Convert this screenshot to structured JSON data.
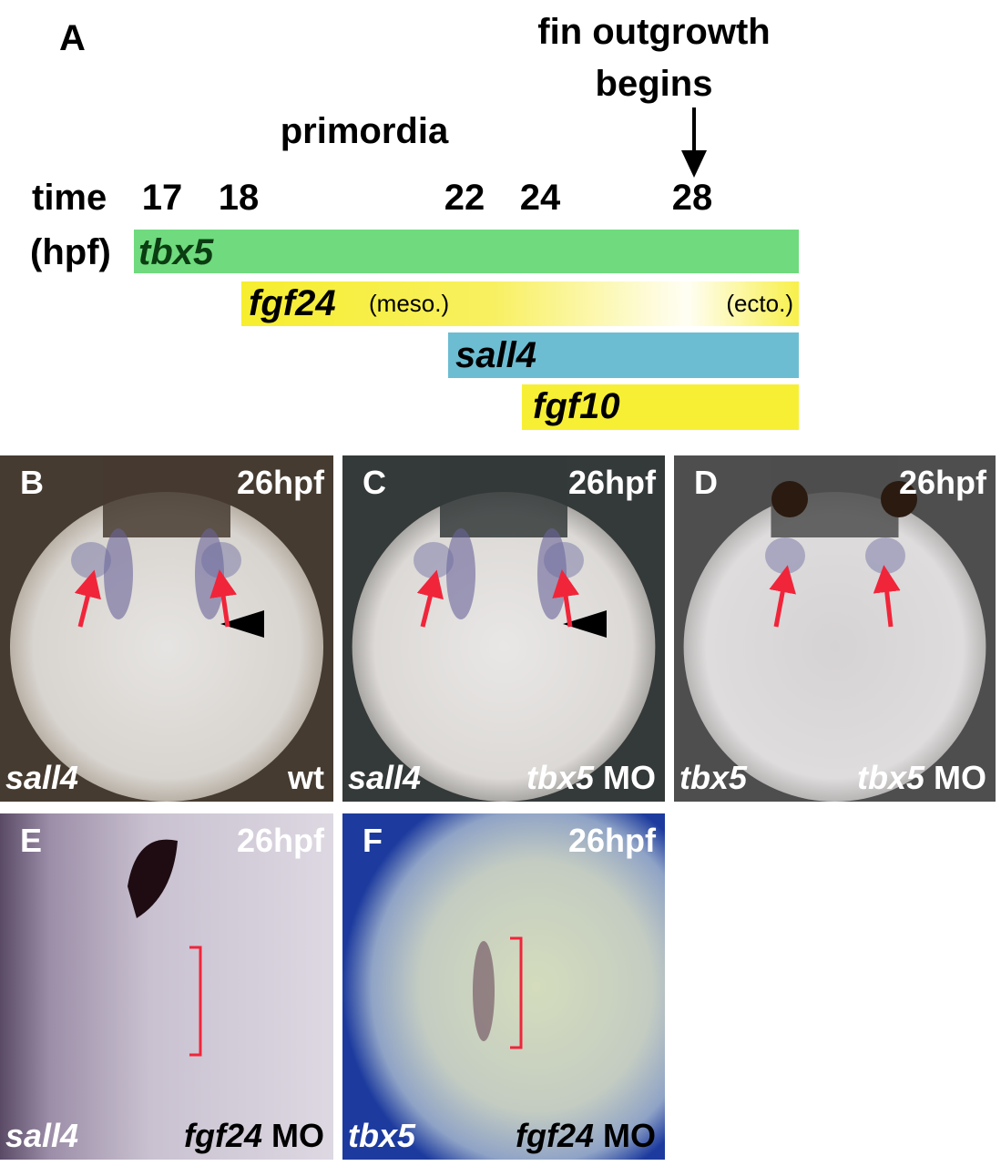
{
  "panel_a": {
    "label": "A",
    "annotation_lines": [
      "fin outgrowth",
      "begins"
    ],
    "stage_label": "primordia",
    "axis_label": [
      "time",
      "(hpf)"
    ],
    "times": [
      17,
      18,
      22,
      24,
      28
    ],
    "bars": [
      {
        "gene": "tbx5"
      },
      {
        "gene": "fgf24",
        "left_note": "(meso.)",
        "right_note": "(ecto.)"
      },
      {
        "gene": "sall4"
      },
      {
        "gene": "fgf10"
      }
    ]
  },
  "panels": [
    {
      "label": "B",
      "stage": "26hpf",
      "probe": "sall4",
      "condition": "wt"
    },
    {
      "label": "C",
      "stage": "26hpf",
      "probe": "sall4",
      "condition_gene": "tbx5",
      "condition": "MO"
    },
    {
      "label": "D",
      "stage": "26hpf",
      "probe": "tbx5",
      "condition_gene": "tbx5",
      "condition": "MO"
    },
    {
      "label": "E",
      "stage": "26hpf",
      "probe": "sall4",
      "condition_gene": "fgf24",
      "condition": "MO"
    },
    {
      "label": "F",
      "stage": "26hpf",
      "probe": "tbx5",
      "condition_gene": "fgf24",
      "condition": "MO"
    }
  ]
}
